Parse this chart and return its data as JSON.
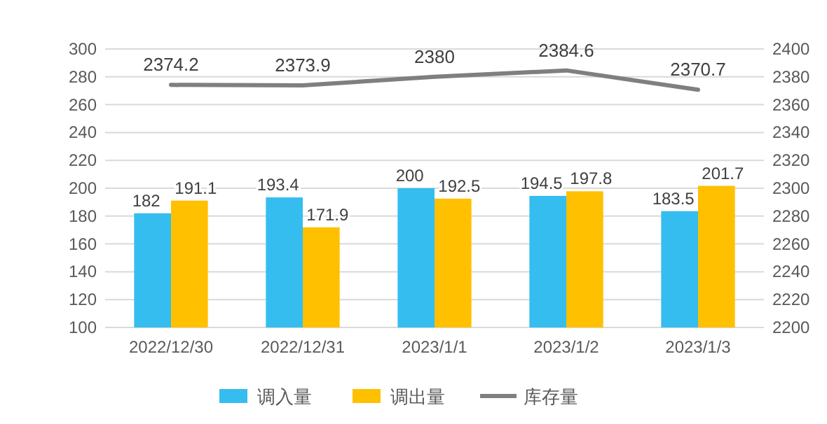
{
  "chart_data": {
    "type": "bar",
    "categories": [
      "2022/12/30",
      "2022/12/31",
      "2023/1/1",
      "2023/1/2",
      "2023/1/3"
    ],
    "series": [
      {
        "name": "调入量",
        "color": "#35bdf0",
        "values": [
          182,
          193.4,
          200,
          194.5,
          183.5
        ]
      },
      {
        "name": "调出量",
        "color": "#ffc000",
        "values": [
          191.1,
          171.9,
          192.5,
          197.8,
          201.7
        ]
      },
      {
        "name": "库存量",
        "type": "line",
        "axis": "y2",
        "color": "#7f7f7f",
        "values": [
          2374.2,
          2373.9,
          2380,
          2384.6,
          2370.7
        ]
      }
    ],
    "ylim": [
      100,
      300
    ],
    "yticks": [
      100,
      120,
      140,
      160,
      180,
      200,
      220,
      240,
      260,
      280,
      300
    ],
    "y2lim": [
      2200,
      2400
    ],
    "y2ticks": [
      2200,
      2220,
      2240,
      2260,
      2280,
      2300,
      2320,
      2340,
      2360,
      2380,
      2400
    ],
    "grid": "y",
    "legend": "bottom",
    "data_labels": true,
    "marker": "none"
  }
}
